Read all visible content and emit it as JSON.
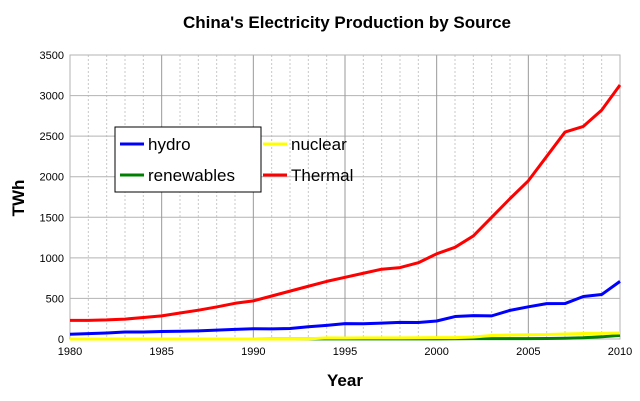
{
  "chart_data": {
    "type": "line",
    "title": "China's Electricity Production by Source",
    "xlabel": "Year",
    "ylabel": "TWh",
    "xlim": [
      1980,
      2010
    ],
    "ylim": [
      0,
      3500
    ],
    "xticks": [
      "1980",
      "1985",
      "1990",
      "1995",
      "2000",
      "2005",
      "2010"
    ],
    "yticks": [
      "0",
      "500",
      "1000",
      "1500",
      "2000",
      "2500",
      "3000",
      "3500"
    ],
    "grid": true,
    "legend_position": "upper-left",
    "x": [
      1980,
      1981,
      1982,
      1983,
      1984,
      1985,
      1986,
      1987,
      1988,
      1989,
      1990,
      1991,
      1992,
      1993,
      1994,
      1995,
      1996,
      1997,
      1998,
      1999,
      2000,
      2001,
      2002,
      2003,
      2004,
      2005,
      2006,
      2007,
      2008,
      2009,
      2010
    ],
    "series": [
      {
        "name": "hydro",
        "color": "#0000ff",
        "values": [
          58,
          66,
          74,
          86,
          87,
          92,
          95,
          100,
          109,
          118,
          126,
          125,
          130,
          151,
          168,
          190,
          188,
          195,
          205,
          204,
          222,
          277,
          288,
          285,
          353,
          397,
          436,
          437,
          524,
          548,
          710
        ]
      },
      {
        "name": "nuclear",
        "color": "#ffff00",
        "values": [
          0,
          0,
          0,
          0,
          0,
          0,
          0,
          0,
          0,
          0,
          0,
          0,
          0,
          2,
          14,
          13,
          14,
          14,
          14,
          15,
          17,
          17,
          25,
          43,
          50,
          53,
          55,
          62,
          68,
          70,
          74
        ]
      },
      {
        "name": "renewables",
        "color": "#008000",
        "values": [
          0,
          0,
          0,
          0,
          0,
          0,
          0,
          0,
          0,
          0,
          0,
          1,
          1,
          1,
          1,
          1,
          1,
          1,
          1,
          1,
          1,
          3,
          4,
          4,
          4,
          5,
          6,
          10,
          15,
          27,
          45
        ]
      },
      {
        "name": "Thermal",
        "color": "#ff0000",
        "values": [
          230,
          230,
          235,
          245,
          265,
          285,
          320,
          355,
          395,
          440,
          470,
          530,
          590,
          650,
          710,
          760,
          810,
          860,
          880,
          940,
          1050,
          1130,
          1270,
          1500,
          1730,
          1950,
          2250,
          2550,
          2620,
          2820,
          3130
        ]
      }
    ]
  }
}
